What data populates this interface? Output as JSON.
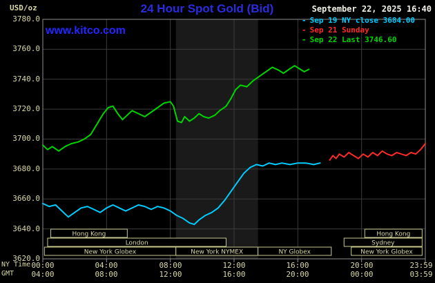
{
  "header": {
    "title": "24 Hour Spot Gold (Bid)",
    "datetime": "September 22, 2025 16:40",
    "watermark": "www.kitco.com",
    "y_unit": "USD/oz"
  },
  "legend": [
    {
      "marker": "-",
      "text": "Sep 19 NY close 3684.00"
    },
    {
      "marker": "-",
      "text": "Sep 21 Sunday"
    },
    {
      "marker": "-",
      "text": "Sep 22 Last 3746.60"
    }
  ],
  "axes": {
    "ny_time_label": "NY Time",
    "gmt_label": "GMT",
    "y": [
      "3780.0",
      "3760.0",
      "3740.0",
      "3720.0",
      "3700.0",
      "3680.0",
      "3660.0",
      "3640.0",
      "3620.0"
    ],
    "x_ny": [
      "00:00",
      "04:00",
      "08:00",
      "12:00",
      "16:00",
      "20:00",
      "23:59"
    ],
    "x_gmt": [
      "04:00",
      "08:00",
      "12:00",
      "16:00",
      "20:00",
      "00:00",
      "03:59"
    ]
  },
  "colors": {
    "background": "#000000",
    "axis_text": "#d9d9a6",
    "grid": "#3c3c3c",
    "border": "#8f8f8f",
    "session_border": "#c9c98e",
    "band": "#1a1a1a",
    "title_blue": "#2b2be0",
    "kitco_blue": "#2525ff",
    "date_text": "#f0f0e6"
  },
  "chart_data": {
    "type": "line",
    "title": "24 Hour Spot Gold (Bid)",
    "x_axis": {
      "range": [
        0,
        24
      ],
      "tick_hours": [
        0,
        4,
        8,
        12,
        16,
        20,
        24
      ],
      "label_rows": [
        {
          "name": "NY Time",
          "labels": [
            "00:00",
            "04:00",
            "08:00",
            "12:00",
            "16:00",
            "20:00",
            "23:59"
          ]
        },
        {
          "name": "GMT",
          "labels": [
            "04:00",
            "08:00",
            "12:00",
            "16:00",
            "20:00",
            "00:00",
            "03:59"
          ]
        }
      ]
    },
    "y_axis": {
      "label": "USD/oz",
      "range": [
        3620,
        3780
      ],
      "tick_step": 20
    },
    "highlight_band": {
      "from_hour": 8.35,
      "to_hour": 13.5
    },
    "series": [
      {
        "name": "Sep 19 NY close 3684.00",
        "color": "#00ccff",
        "points": [
          [
            0,
            3657
          ],
          [
            0.4,
            3655
          ],
          [
            0.8,
            3656
          ],
          [
            1.2,
            3652
          ],
          [
            1.6,
            3648
          ],
          [
            2,
            3651
          ],
          [
            2.4,
            3654
          ],
          [
            2.8,
            3655
          ],
          [
            3.2,
            3653
          ],
          [
            3.6,
            3651
          ],
          [
            4,
            3654
          ],
          [
            4.4,
            3656
          ],
          [
            4.8,
            3654
          ],
          [
            5.2,
            3652
          ],
          [
            5.6,
            3654
          ],
          [
            6,
            3656
          ],
          [
            6.4,
            3655
          ],
          [
            6.8,
            3653
          ],
          [
            7.2,
            3655
          ],
          [
            7.6,
            3654
          ],
          [
            8,
            3652
          ],
          [
            8.4,
            3649
          ],
          [
            8.8,
            3647
          ],
          [
            9.2,
            3644
          ],
          [
            9.5,
            3643
          ],
          [
            9.8,
            3646
          ],
          [
            10.2,
            3649
          ],
          [
            10.6,
            3651
          ],
          [
            11,
            3654
          ],
          [
            11.4,
            3659
          ],
          [
            11.8,
            3665
          ],
          [
            12.2,
            3671
          ],
          [
            12.6,
            3677
          ],
          [
            13,
            3681
          ],
          [
            13.4,
            3683
          ],
          [
            13.8,
            3682
          ],
          [
            14.2,
            3684
          ],
          [
            14.6,
            3683
          ],
          [
            15,
            3684
          ],
          [
            15.5,
            3683
          ],
          [
            16,
            3684
          ],
          [
            16.5,
            3684
          ],
          [
            17,
            3683
          ],
          [
            17.4,
            3684
          ]
        ]
      },
      {
        "name": "Sep 21 Sunday",
        "color": "#ff2a2a",
        "points": [
          [
            18,
            3686
          ],
          [
            18.2,
            3689
          ],
          [
            18.4,
            3687
          ],
          [
            18.6,
            3690
          ],
          [
            18.9,
            3688
          ],
          [
            19.2,
            3691
          ],
          [
            19.5,
            3689
          ],
          [
            19.8,
            3687
          ],
          [
            20.1,
            3690
          ],
          [
            20.4,
            3688
          ],
          [
            20.7,
            3691
          ],
          [
            21,
            3689
          ],
          [
            21.3,
            3692
          ],
          [
            21.6,
            3690
          ],
          [
            21.9,
            3689
          ],
          [
            22.2,
            3691
          ],
          [
            22.5,
            3690
          ],
          [
            22.8,
            3689
          ],
          [
            23.1,
            3691
          ],
          [
            23.4,
            3690
          ],
          [
            23.7,
            3693
          ],
          [
            24,
            3697
          ]
        ]
      },
      {
        "name": "Sep 22 Last 3746.60",
        "color": "#00d500",
        "points": [
          [
            0,
            3696
          ],
          [
            0.3,
            3693
          ],
          [
            0.6,
            3695
          ],
          [
            1,
            3692
          ],
          [
            1.4,
            3695
          ],
          [
            1.8,
            3697
          ],
          [
            2.2,
            3698
          ],
          [
            2.6,
            3700
          ],
          [
            3,
            3703
          ],
          [
            3.4,
            3710
          ],
          [
            3.8,
            3717
          ],
          [
            4.1,
            3721
          ],
          [
            4.4,
            3722
          ],
          [
            4.7,
            3717
          ],
          [
            5,
            3713
          ],
          [
            5.3,
            3716
          ],
          [
            5.6,
            3719
          ],
          [
            6,
            3717
          ],
          [
            6.4,
            3715
          ],
          [
            6.8,
            3718
          ],
          [
            7.2,
            3721
          ],
          [
            7.6,
            3724
          ],
          [
            8,
            3725
          ],
          [
            8.2,
            3722
          ],
          [
            8.45,
            3712
          ],
          [
            8.7,
            3711
          ],
          [
            8.9,
            3715
          ],
          [
            9.2,
            3712
          ],
          [
            9.5,
            3714
          ],
          [
            9.8,
            3717
          ],
          [
            10.1,
            3715
          ],
          [
            10.4,
            3714
          ],
          [
            10.8,
            3716
          ],
          [
            11.1,
            3719
          ],
          [
            11.5,
            3722
          ],
          [
            11.8,
            3727
          ],
          [
            12.1,
            3733
          ],
          [
            12.4,
            3736
          ],
          [
            12.8,
            3735
          ],
          [
            13.2,
            3739
          ],
          [
            13.6,
            3742
          ],
          [
            14,
            3745
          ],
          [
            14.4,
            3748
          ],
          [
            14.8,
            3746
          ],
          [
            15.1,
            3744
          ],
          [
            15.5,
            3747
          ],
          [
            15.8,
            3749
          ],
          [
            16.1,
            3747
          ],
          [
            16.4,
            3745
          ],
          [
            16.7,
            3746.6
          ]
        ]
      }
    ],
    "sessions": [
      {
        "row": 0,
        "from": 0.5,
        "to": 5.3,
        "label": "Hong Kong"
      },
      {
        "row": 0,
        "from": 20.2,
        "to": 23.8,
        "label": "Hong Kong"
      },
      {
        "row": 1,
        "from": 0.3,
        "to": 11.5,
        "label": "London"
      },
      {
        "row": 1,
        "from": 18.9,
        "to": 23.8,
        "label": "Sydney"
      },
      {
        "row": 2,
        "from": 0.1,
        "to": 8.35,
        "label": "New York Globex"
      },
      {
        "row": 2,
        "from": 8.35,
        "to": 13.5,
        "label": "New York NYMEX"
      },
      {
        "row": 2,
        "from": 13.5,
        "to": 18.1,
        "label": "NY Globex"
      },
      {
        "row": 2,
        "from": 19.35,
        "to": 23.8,
        "label": "New York Globex"
      }
    ]
  }
}
